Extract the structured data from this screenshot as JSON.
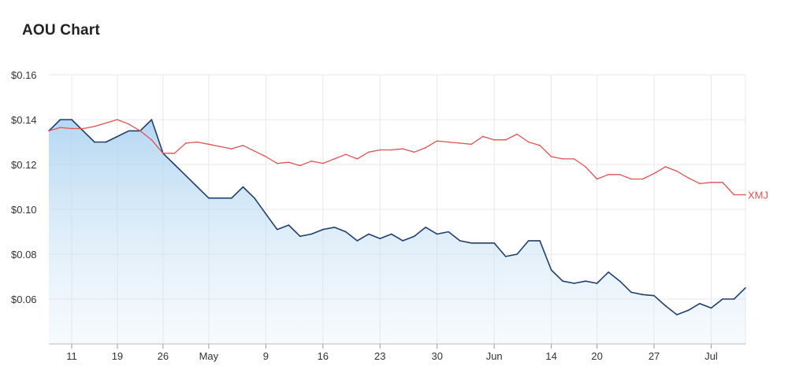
{
  "title": "AOU Chart",
  "colors": {
    "aou": "#1f3f6e",
    "xmj": "#e05252",
    "fill_top": "#a9d1f0",
    "grid": "#e8e8e8"
  },
  "chart_data": {
    "type": "line",
    "title": "AOU Chart",
    "ylim": [
      0.04,
      0.16
    ],
    "yticks": [
      {
        "value": 0.06,
        "label": "$0.06"
      },
      {
        "value": 0.08,
        "label": "$0.08"
      },
      {
        "value": 0.1,
        "label": "$0.10"
      },
      {
        "value": 0.12,
        "label": "$0.12"
      },
      {
        "value": 0.14,
        "label": "$0.14"
      },
      {
        "value": 0.16,
        "label": "$0.16"
      }
    ],
    "xlim": [
      0,
      61
    ],
    "xticks": [
      {
        "x": 2,
        "label": "11"
      },
      {
        "x": 6,
        "label": "19"
      },
      {
        "x": 10,
        "label": "26"
      },
      {
        "x": 14,
        "label": "May"
      },
      {
        "x": 19,
        "label": "9"
      },
      {
        "x": 24,
        "label": "16"
      },
      {
        "x": 29,
        "label": "23"
      },
      {
        "x": 34,
        "label": "30"
      },
      {
        "x": 39,
        "label": "Jun"
      },
      {
        "x": 44,
        "label": "14"
      },
      {
        "x": 48,
        "label": "20"
      },
      {
        "x": 53,
        "label": "27"
      },
      {
        "x": 58,
        "label": "Jul"
      }
    ],
    "grid": true,
    "series": [
      {
        "name": "AOU",
        "area": true,
        "values": [
          0.135,
          0.14,
          0.14,
          0.135,
          0.13,
          0.13,
          0.1325,
          0.135,
          0.135,
          0.14,
          0.125,
          0.12,
          0.115,
          0.11,
          0.105,
          0.105,
          0.105,
          0.11,
          0.105,
          0.098,
          0.091,
          0.093,
          0.088,
          0.089,
          0.091,
          0.092,
          0.09,
          0.086,
          0.089,
          0.087,
          0.089,
          0.086,
          0.088,
          0.092,
          0.089,
          0.09,
          0.086,
          0.085,
          0.085,
          0.085,
          0.079,
          0.08,
          0.086,
          0.086,
          0.073,
          0.068,
          0.067,
          0.068,
          0.067,
          0.072,
          0.068,
          0.063,
          0.062,
          0.0615,
          0.057,
          0.053,
          0.055,
          0.058,
          0.056,
          0.06,
          0.06,
          0.065
        ]
      },
      {
        "name": "XMJ",
        "values": [
          0.135,
          0.1365,
          0.136,
          0.136,
          0.137,
          0.1385,
          0.14,
          0.138,
          0.135,
          0.131,
          0.125,
          0.125,
          0.1295,
          0.13,
          0.129,
          0.128,
          0.127,
          0.1285,
          0.126,
          0.1235,
          0.1205,
          0.121,
          0.1195,
          0.1215,
          0.1205,
          0.1225,
          0.1245,
          0.1225,
          0.1255,
          0.1265,
          0.1265,
          0.127,
          0.1255,
          0.1275,
          0.1305,
          0.13,
          0.1295,
          0.129,
          0.1325,
          0.131,
          0.131,
          0.1335,
          0.13,
          0.1285,
          0.1235,
          0.1225,
          0.1225,
          0.119,
          0.1135,
          0.1155,
          0.1155,
          0.1135,
          0.1135,
          0.116,
          0.119,
          0.117,
          0.114,
          0.1115,
          0.112,
          0.112,
          0.1065,
          0.1065
        ]
      }
    ]
  }
}
